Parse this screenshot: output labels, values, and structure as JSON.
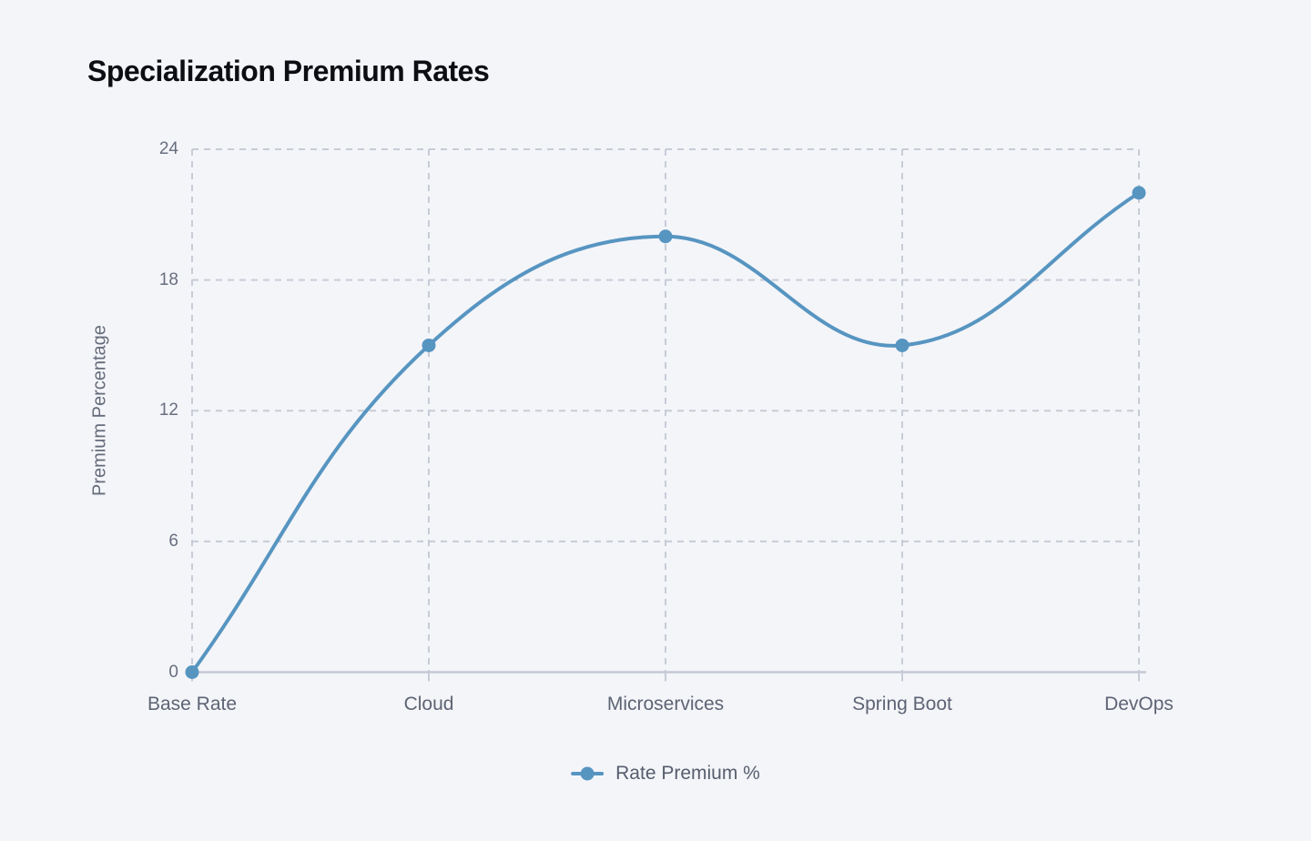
{
  "page": {
    "background_color": "#f4f5f9"
  },
  "chart_data": {
    "type": "line",
    "title": "Specialization Premium Rates",
    "categories": [
      "Base Rate",
      "Cloud",
      "Microservices",
      "Spring Boot",
      "DevOps"
    ],
    "series": [
      {
        "name": "Rate Premium %",
        "values": [
          0,
          15,
          20,
          15,
          22
        ]
      }
    ],
    "xlabel": "",
    "ylabel": "Premium Percentage",
    "ylim": [
      0,
      24
    ],
    "yticks": [
      0,
      6,
      12,
      18,
      24
    ],
    "grid": true,
    "grid_style": "dashed",
    "legend_position": "bottom",
    "line_color": "#5795c1",
    "grid_color": "#c7ccd7",
    "axis_color": "#c4c9d4",
    "tick_label_color": "#686f7e",
    "category_label_color": "#5d6474",
    "title_color": "#0c0e13"
  }
}
